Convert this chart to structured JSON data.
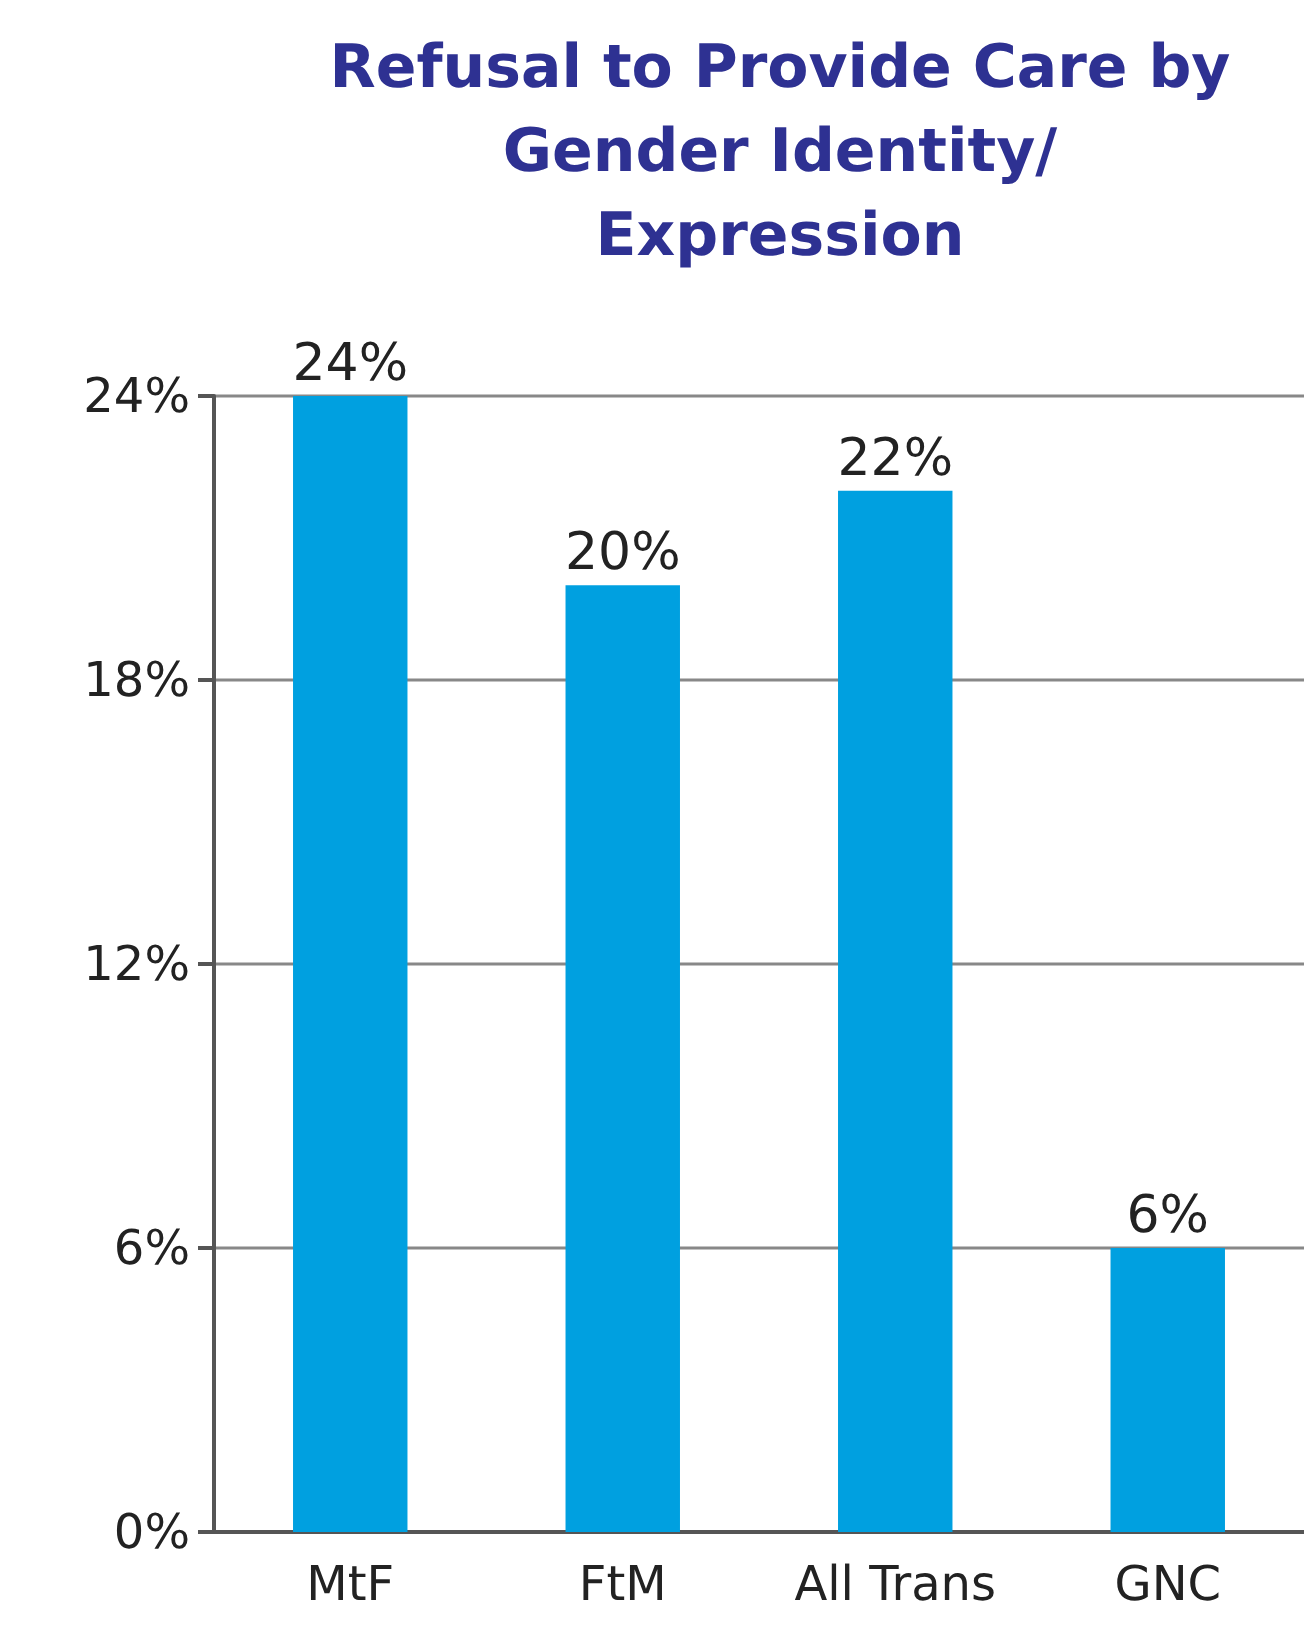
{
  "chart_data": {
    "type": "bar",
    "title": "Refusal to Provide Care by\nGender Identity/\nExpression",
    "categories": [
      "MtF",
      "FtM",
      "All Trans",
      "GNC"
    ],
    "values": [
      24,
      20,
      22,
      6
    ],
    "value_labels": [
      "24%",
      "20%",
      "22%",
      "6%"
    ],
    "color": "#00a0e0",
    "ylim": [
      0,
      24
    ],
    "yticks": [
      {
        "value": 0,
        "label": "0%"
      },
      {
        "value": 6,
        "label": "6%"
      },
      {
        "value": 12,
        "label": "12%"
      },
      {
        "value": 18,
        "label": "18%"
      },
      {
        "value": 24,
        "label": "24%"
      }
    ],
    "grid": "y"
  }
}
